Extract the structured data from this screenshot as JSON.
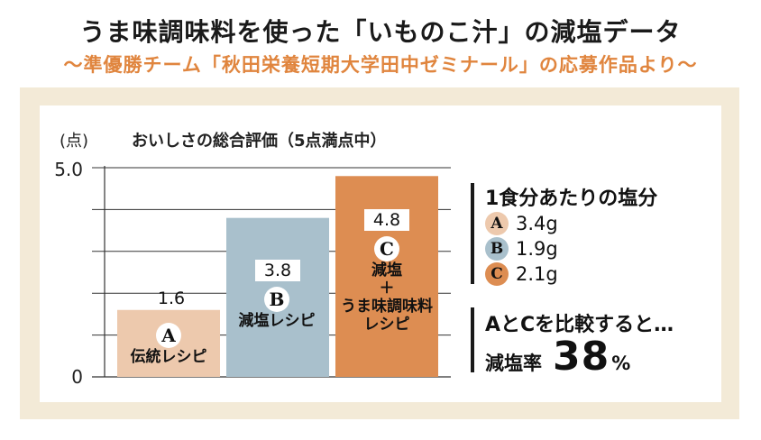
{
  "header": {
    "title": "うま味調味料を使った「いものこ汁」の減塩データ",
    "subtitle": "〜準優勝チーム「秋田栄養短期大学田中ゼミナール」の応募作品より〜"
  },
  "colors": {
    "accent": "#e0853e",
    "frame": "#f3ead7",
    "bar_a": "#edc9ad",
    "bar_b": "#a9c0cc",
    "bar_c": "#dd8d52",
    "grid": "#333333"
  },
  "chart_data": {
    "type": "bar",
    "title": "おいしさの総合評価（5点満点中）",
    "ylabel": "(点)",
    "ylim": [
      0,
      5
    ],
    "yticks": [
      "5.0",
      "0"
    ],
    "grid_lines": [
      1,
      2,
      3,
      4,
      5
    ],
    "categories": [
      "A",
      "B",
      "C"
    ],
    "values": [
      1.6,
      3.8,
      4.8
    ],
    "value_labels": [
      "1.6",
      "3.8",
      "4.8"
    ],
    "bar_names": [
      [
        "伝統レシピ"
      ],
      [
        "減塩レシピ"
      ],
      [
        "減塩",
        "＋",
        "うま味調味料",
        "レシピ"
      ]
    ]
  },
  "legend": {
    "title": "1食分あたりの塩分",
    "items": [
      {
        "key": "A",
        "value": "3.4g"
      },
      {
        "key": "B",
        "value": "1.9g"
      },
      {
        "key": "C",
        "value": "2.1g"
      }
    ]
  },
  "comparison": {
    "text": "AとCを比較すると…",
    "label": "減塩率",
    "value": "38",
    "unit": "%"
  }
}
